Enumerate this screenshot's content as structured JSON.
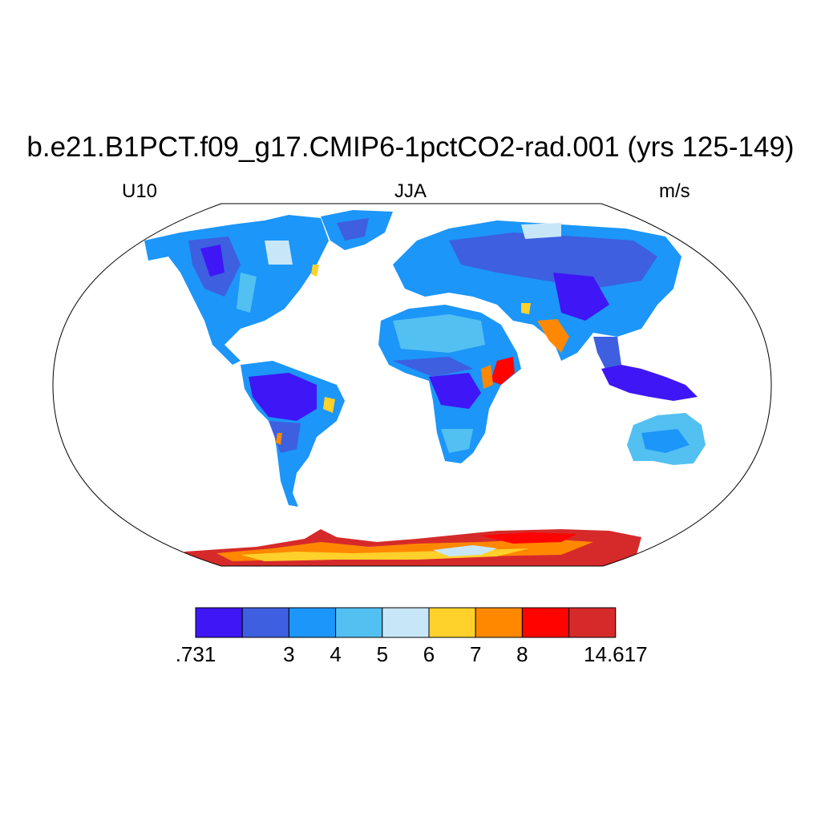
{
  "title": "b.e21.B1PCT.f09_g17.CMIP6-1pctCO2-rad.001 (yrs 125-149)",
  "variable": "U10",
  "season": "JJA",
  "units": "m/s",
  "colorbar": {
    "colors": [
      "#3f16f5",
      "#3d5fe0",
      "#1c96f8",
      "#53c0f2",
      "#c7e7f8",
      "#ffd12a",
      "#ff8800",
      "#ff0300",
      "#d62a2a"
    ],
    "tick_labels": [
      ".731",
      "3",
      "4",
      "5",
      "6",
      "7",
      "8",
      "14.617"
    ]
  },
  "ocean_color": "#ffffff",
  "coastline_color": "#000000"
}
